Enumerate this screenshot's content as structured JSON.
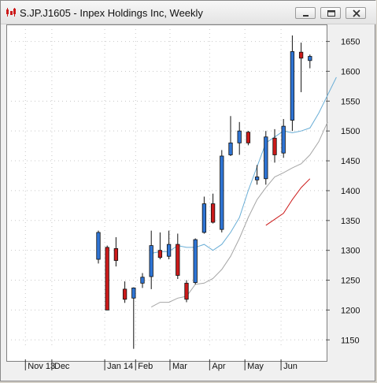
{
  "window": {
    "title": "S.JP.J1605 - Inpex Holdings Inc, Weekly",
    "icon": "chart-icon",
    "buttons": [
      "minimize-icon",
      "maximize-icon",
      "close-icon"
    ]
  },
  "chart_data": {
    "type": "candlestick",
    "title": "S.JP.J1605 - Inpex Holdings Inc, Weekly",
    "ylim": [
      1120,
      1660
    ],
    "yticks": [
      1150,
      1200,
      1250,
      1300,
      1350,
      1400,
      1450,
      1500,
      1550,
      1600,
      1650
    ],
    "grid": true,
    "colors": {
      "up": "#2e74d4",
      "down": "#cc1a1a",
      "ma_short": "#6aaed6",
      "ma_mid": "#a6a6a6",
      "ma_long": "#cc1a1a"
    },
    "x_labels": [
      {
        "label": "Nov 13",
        "bar": -8.1
      },
      {
        "label": "Dec",
        "bar": -5.1
      },
      {
        "label": "Jan 14",
        "bar": 0.9
      },
      {
        "label": "Feb",
        "bar": 4.4
      },
      {
        "label": "Mar",
        "bar": 8.3
      },
      {
        "label": "Apr",
        "bar": 12.8
      },
      {
        "label": "May",
        "bar": 16.8
      },
      {
        "label": "Jun",
        "bar": 20.9
      }
    ],
    "candles": [
      {
        "o": 1285,
        "h": 1333,
        "l": 1278,
        "c": 1330
      },
      {
        "o": 1305,
        "h": 1308,
        "l": 1200,
        "c": 1200
      },
      {
        "o": 1303,
        "h": 1322,
        "l": 1273,
        "c": 1283
      },
      {
        "o": 1235,
        "h": 1248,
        "l": 1212,
        "c": 1218
      },
      {
        "o": 1220,
        "h": 1238,
        "l": 1135,
        "c": 1237
      },
      {
        "o": 1245,
        "h": 1262,
        "l": 1237,
        "c": 1255
      },
      {
        "o": 1256,
        "h": 1333,
        "l": 1235,
        "c": 1308
      },
      {
        "o": 1300,
        "h": 1330,
        "l": 1285,
        "c": 1288
      },
      {
        "o": 1290,
        "h": 1333,
        "l": 1285,
        "c": 1310
      },
      {
        "o": 1310,
        "h": 1328,
        "l": 1252,
        "c": 1258
      },
      {
        "o": 1245,
        "h": 1250,
        "l": 1213,
        "c": 1218
      },
      {
        "o": 1246,
        "h": 1320,
        "l": 1243,
        "c": 1318
      },
      {
        "o": 1330,
        "h": 1390,
        "l": 1328,
        "c": 1378
      },
      {
        "o": 1378,
        "h": 1395,
        "l": 1345,
        "c": 1347
      },
      {
        "o": 1335,
        "h": 1468,
        "l": 1330,
        "c": 1458
      },
      {
        "o": 1460,
        "h": 1525,
        "l": 1458,
        "c": 1480
      },
      {
        "o": 1480,
        "h": 1515,
        "l": 1460,
        "c": 1500
      },
      {
        "o": 1498,
        "h": 1500,
        "l": 1476,
        "c": 1480
      },
      {
        "o": 1418,
        "h": 1443,
        "l": 1410,
        "c": 1423
      },
      {
        "o": 1420,
        "h": 1500,
        "l": 1410,
        "c": 1490
      },
      {
        "o": 1488,
        "h": 1503,
        "l": 1447,
        "c": 1460
      },
      {
        "o": 1463,
        "h": 1520,
        "l": 1455,
        "c": 1508
      },
      {
        "o": 1518,
        "h": 1660,
        "l": 1500,
        "c": 1633
      },
      {
        "o": 1632,
        "h": 1648,
        "l": 1565,
        "c": 1622
      },
      {
        "o": 1618,
        "h": 1628,
        "l": 1605,
        "c": 1625
      }
    ],
    "moving_averages": [
      {
        "name": "short",
        "color": "#6aaed6",
        "start": 6,
        "values": [
          1295,
          1298,
          1298,
          1308,
          1305,
          1305,
          1310,
          1300,
          1310,
          1330,
          1355,
          1400,
          1440,
          1480,
          1490,
          1500,
          1497,
          1500,
          1505,
          1530,
          1560,
          1590
        ]
      },
      {
        "name": "mid",
        "color": "#a6a6a6",
        "start": 6,
        "values": [
          1205,
          1213,
          1213,
          1220,
          1223,
          1243,
          1245,
          1253,
          1268,
          1290,
          1320,
          1355,
          1385,
          1405,
          1423,
          1430,
          1438,
          1445,
          1460,
          1482,
          1515
        ]
      },
      {
        "name": "long",
        "color": "#cc1a1a",
        "start": 19,
        "values": [
          1342,
          1352,
          1362,
          1385,
          1405,
          1420
        ]
      }
    ]
  }
}
